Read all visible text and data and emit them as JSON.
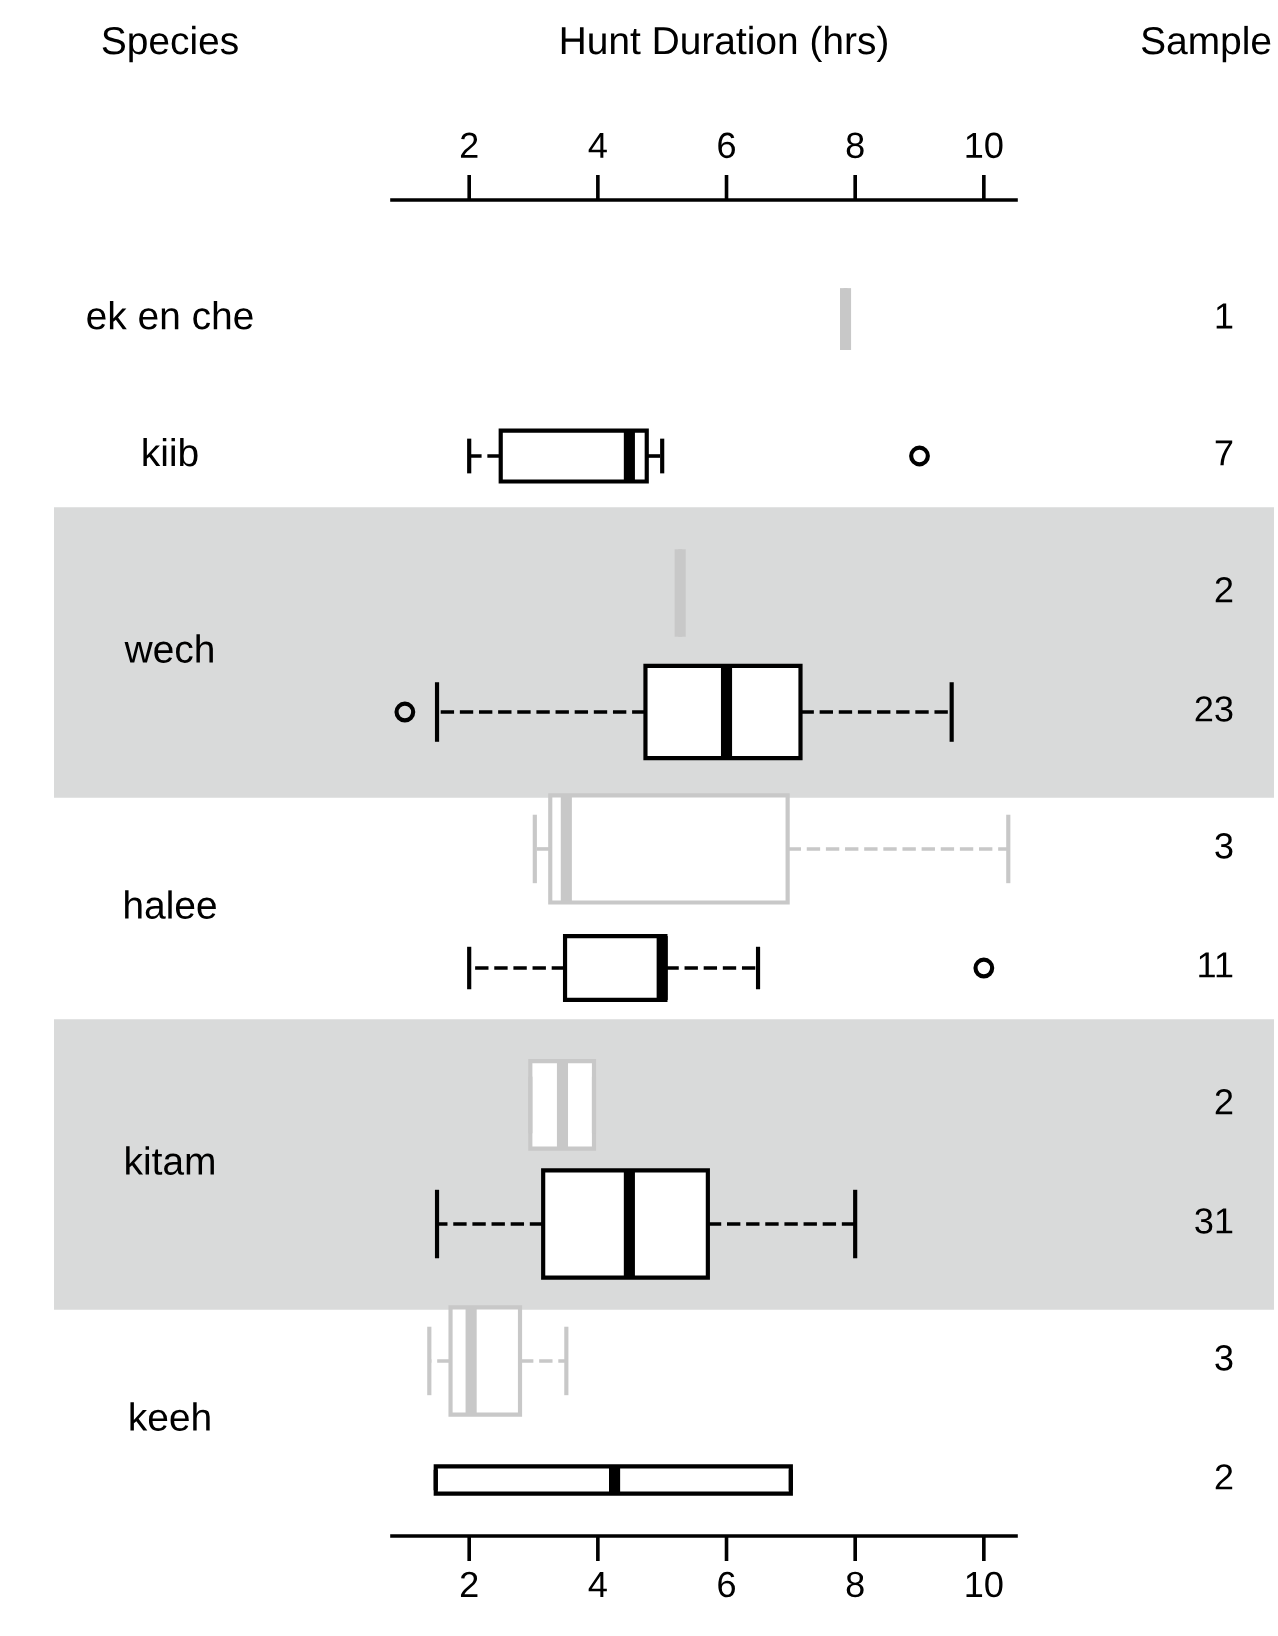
{
  "chart_data": {
    "type": "box",
    "orientation": "horizontal",
    "ylabel": "Species",
    "x2label": "Hunt Duration (hrs)",
    "y2label": "Sample",
    "categories": [
      "ek en che",
      "kiib",
      "wech",
      "halee",
      "kitam",
      "keeh"
    ],
    "xlim": [
      0.8,
      10.5
    ],
    "xticks": [
      2,
      4,
      6,
      8,
      10
    ],
    "x2lim": [
      0.8,
      10.5
    ],
    "x2ticks": [
      2,
      4,
      6,
      8,
      10
    ],
    "grid": false,
    "line_style": "dashed",
    "marker": "circle",
    "series": [
      {
        "color": "#c8c8c8",
        "value_labels": [
          "1",
          null,
          "2",
          "3",
          "2",
          "3"
        ],
        "boxes": [
          {
            "low": 7.85,
            "q1": 7.85,
            "median": 7.85,
            "q3": 7.85,
            "high": 7.85
          },
          null,
          {
            "low": 5.28,
            "q1": 5.28,
            "median": 5.28,
            "q3": 5.28,
            "high": 5.28
          },
          {
            "low": 3.02,
            "q1": 3.26,
            "median": 3.51,
            "q3": 6.95,
            "high": 10.38
          },
          {
            "low": 2.95,
            "q1": 2.95,
            "median": 3.45,
            "q3": 3.94,
            "high": 3.94
          },
          {
            "low": 1.38,
            "q1": 1.71,
            "median": 2.03,
            "q3": 2.79,
            "high": 3.51
          }
        ]
      },
      {
        "color": "#000000",
        "value_labels": [
          null,
          "7",
          "23",
          "11",
          "31",
          "2"
        ],
        "boxes": [
          null,
          {
            "low": 2.0,
            "q1": 2.49,
            "median": 4.49,
            "q3": 4.76,
            "high": 5.0,
            "outliers": [
              9.0
            ]
          },
          {
            "low": 1.5,
            "q1": 4.74,
            "median": 6.0,
            "q3": 7.15,
            "high": 9.5,
            "outliers": [
              1.0
            ]
          },
          {
            "low": 2.0,
            "q1": 3.49,
            "median": 5.0,
            "q3": 5.05,
            "high": 6.49,
            "outliers": [
              10.0
            ]
          },
          {
            "low": 1.5,
            "q1": 3.15,
            "median": 4.49,
            "q3": 5.71,
            "high": 8.0
          },
          {
            "low": 1.48,
            "q1": 1.48,
            "median": 4.26,
            "q3": 7.0,
            "high": 7.0
          }
        ]
      }
    ]
  }
}
